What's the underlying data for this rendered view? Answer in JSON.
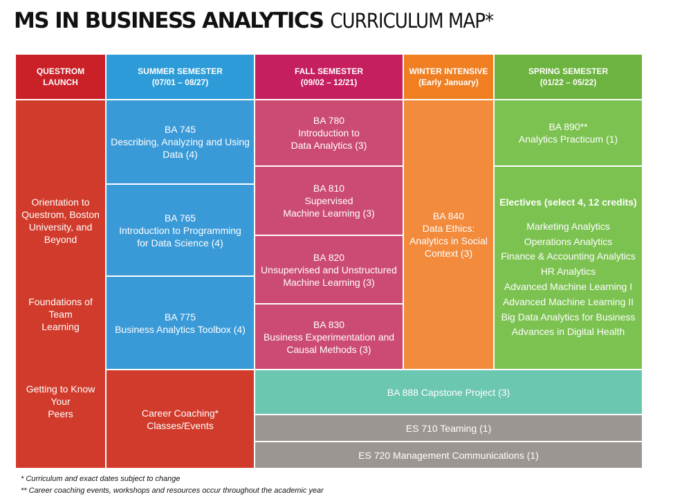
{
  "title": {
    "bold": "MS IN BUSINESS ANALYTICS",
    "light": "CURRICULUM MAP*"
  },
  "colors": {
    "red": "#d13b2b",
    "red_header": "#c92127",
    "blue": "#3a9ad8",
    "blue_header": "#2c9bd7",
    "magenta": "#cc4b73",
    "magenta_header": "#c51f5f",
    "orange": "#f28b3c",
    "orange_header": "#f07f22",
    "green": "#7cc251",
    "green_header": "#6cb33f",
    "teal": "#6cc7b0",
    "gray": "#9b9691"
  },
  "headers": {
    "questrom": [
      "QUESTROM",
      "LAUNCH"
    ],
    "summer": [
      "SUMMER SEMESTER",
      "(07/01 – 08/27)"
    ],
    "fall": [
      "FALL SEMESTER",
      "(09/02 – 12/21)"
    ],
    "winter": [
      "WINTER INTENSIVE",
      "(Early January)"
    ],
    "spring": [
      "SPRING SEMESTER",
      "(01/22 – 05/22)"
    ]
  },
  "launch": {
    "orientation": [
      "Orientation to",
      "Questrom, Boston",
      "University, and Beyond"
    ],
    "foundations": [
      "Foundations of Team",
      "Learning"
    ],
    "peers": [
      "Getting to Know Your",
      "Peers"
    ]
  },
  "summer": {
    "ba745": [
      "BA 745",
      "Describing, Analyzing and Using",
      "Data (4)"
    ],
    "ba765": [
      "BA 765",
      "Introduction to Programming",
      "for Data Science (4)"
    ],
    "ba775": [
      "BA 775",
      "Business Analytics Toolbox (4)"
    ],
    "career": [
      "Career Coaching*",
      "Classes/Events"
    ]
  },
  "fall": {
    "ba780": [
      "BA 780",
      "Introduction to",
      "Data Analytics (3)"
    ],
    "ba810": [
      "BA 810",
      "Supervised",
      "Machine Learning (3)"
    ],
    "ba820": [
      "BA 820",
      "Unsupervised and Unstructured",
      "Machine Learning (3)"
    ],
    "ba830": [
      "BA 830",
      "Business Experimentation and",
      "Causal Methods (3)"
    ]
  },
  "winter": {
    "ba840": [
      "BA 840",
      "Data Ethics:",
      "Analytics in Social",
      "Context (3)"
    ]
  },
  "spring": {
    "ba890": [
      "BA 890**",
      "Analytics Practicum (1)"
    ],
    "electives_head": "Electives (select 4, 12 credits)",
    "electives": [
      "Marketing Analytics",
      "Operations Analytics",
      "Finance & Accounting Analytics",
      "HR Analytics",
      "Advanced Machine Learning I",
      "Advanced Machine Learning II",
      "Big Data Analytics for Business",
      "Advances in Digital Health"
    ]
  },
  "bottom": {
    "capstone": "BA 888 Capstone Project (3)",
    "teaming": "ES 710 Teaming (1)",
    "comms": "ES 720 Management Communications (1)"
  },
  "footnotes": [
    "* Curriculum and exact dates subject to change",
    "** Career coaching events, workshops and resources occur throughout the academic year"
  ]
}
